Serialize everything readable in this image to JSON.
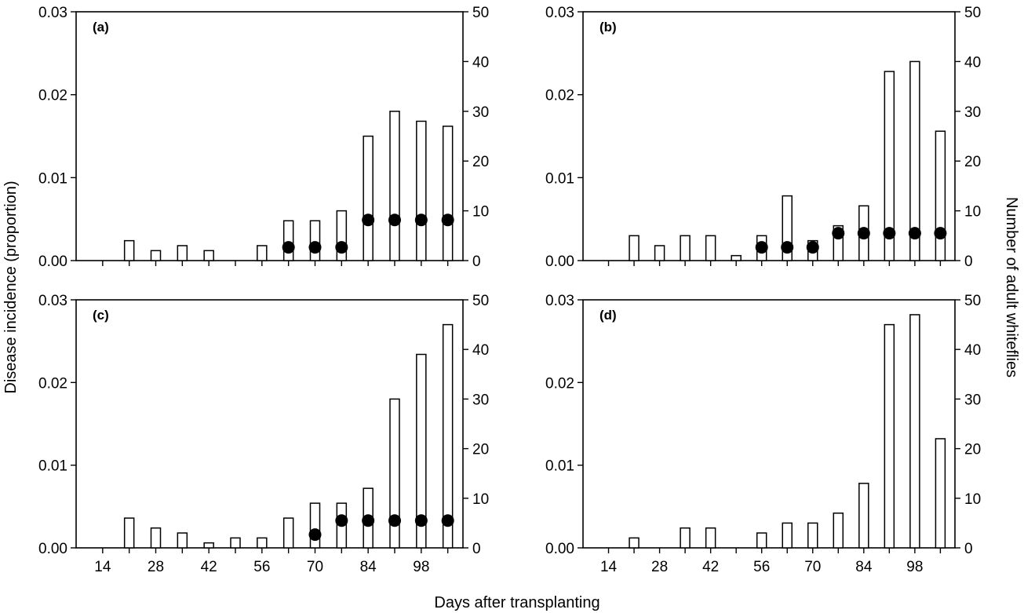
{
  "figure": {
    "ylabel_left": "Disease incidence (proportion)",
    "ylabel_right": "Number of adult whiteflies",
    "xlabel": "Days after transplanting"
  },
  "chart_data": [
    {
      "panel": "(a)",
      "type": "bar",
      "x": [
        21,
        28,
        35,
        42,
        56,
        63,
        70,
        77,
        84,
        91,
        98,
        105
      ],
      "bar_series": {
        "axis": "right",
        "values": [
          4,
          2,
          3,
          2,
          3,
          8,
          8,
          10,
          25,
          30,
          28,
          27
        ]
      },
      "point_series": {
        "axis": "left",
        "points": [
          [
            63,
            0.0016
          ],
          [
            70,
            0.0016
          ],
          [
            77,
            0.0016
          ],
          [
            84,
            0.0049
          ],
          [
            91,
            0.0049
          ],
          [
            98,
            0.0049
          ],
          [
            105,
            0.0049
          ]
        ]
      },
      "x_ticks": [
        14,
        28,
        42,
        56,
        70,
        84,
        98
      ],
      "xlim": [
        7,
        109
      ],
      "ylim_left": [
        0,
        0.03
      ],
      "ylim_right": [
        0,
        50
      ],
      "left_ticks": [
        "0.00",
        "0.01",
        "0.02",
        "0.03"
      ],
      "right_ticks": [
        "0",
        "10",
        "20",
        "30",
        "40",
        "50"
      ]
    },
    {
      "panel": "(b)",
      "type": "bar",
      "x": [
        21,
        28,
        35,
        42,
        49,
        56,
        63,
        70,
        77,
        84,
        91,
        98,
        105
      ],
      "bar_series": {
        "axis": "right",
        "values": [
          5,
          3,
          5,
          5,
          1,
          5,
          13,
          4,
          7,
          11,
          38,
          40,
          26
        ]
      },
      "point_series": {
        "axis": "left",
        "points": [
          [
            56,
            0.0016
          ],
          [
            63,
            0.0016
          ],
          [
            70,
            0.0016
          ],
          [
            77,
            0.0033
          ],
          [
            84,
            0.0033
          ],
          [
            91,
            0.0033
          ],
          [
            98,
            0.0033
          ],
          [
            105,
            0.0033
          ]
        ]
      },
      "x_ticks": [
        14,
        28,
        42,
        56,
        70,
        84,
        98
      ],
      "xlim": [
        7,
        109
      ],
      "ylim_left": [
        0,
        0.03
      ],
      "ylim_right": [
        0,
        50
      ],
      "left_ticks": [
        "0.00",
        "0.01",
        "0.02",
        "0.03"
      ],
      "right_ticks": [
        "0",
        "10",
        "20",
        "30",
        "40",
        "50"
      ]
    },
    {
      "panel": "(c)",
      "type": "bar",
      "x": [
        21,
        28,
        35,
        42,
        49,
        56,
        63,
        70,
        77,
        84,
        91,
        98,
        105
      ],
      "bar_series": {
        "axis": "right",
        "values": [
          6,
          4,
          3,
          1,
          2,
          2,
          6,
          9,
          9,
          12,
          30,
          39,
          45
        ]
      },
      "point_series": {
        "axis": "left",
        "points": [
          [
            70,
            0.0016
          ],
          [
            77,
            0.0033
          ],
          [
            84,
            0.0033
          ],
          [
            91,
            0.0033
          ],
          [
            98,
            0.0033
          ],
          [
            105,
            0.0033
          ]
        ]
      },
      "x_ticks": [
        14,
        28,
        42,
        56,
        70,
        84,
        98
      ],
      "xlim": [
        7,
        109
      ],
      "ylim_left": [
        0,
        0.03
      ],
      "ylim_right": [
        0,
        50
      ],
      "left_ticks": [
        "0.00",
        "0.01",
        "0.02",
        "0.03"
      ],
      "right_ticks": [
        "0",
        "10",
        "20",
        "30",
        "40",
        "50"
      ]
    },
    {
      "panel": "(d)",
      "type": "bar",
      "x": [
        21,
        35,
        42,
        56,
        63,
        70,
        77,
        84,
        91,
        98,
        105
      ],
      "bar_series": {
        "axis": "right",
        "values": [
          2,
          4,
          4,
          3,
          5,
          5,
          7,
          13,
          45,
          47,
          22
        ]
      },
      "point_series": {
        "axis": "left",
        "points": []
      },
      "x_ticks": [
        14,
        28,
        42,
        56,
        70,
        84,
        98
      ],
      "xlim": [
        7,
        109
      ],
      "ylim_left": [
        0,
        0.03
      ],
      "ylim_right": [
        0,
        50
      ],
      "left_ticks": [
        "0.00",
        "0.01",
        "0.02",
        "0.03"
      ],
      "right_ticks": [
        "0",
        "10",
        "20",
        "30",
        "40",
        "50"
      ]
    }
  ]
}
